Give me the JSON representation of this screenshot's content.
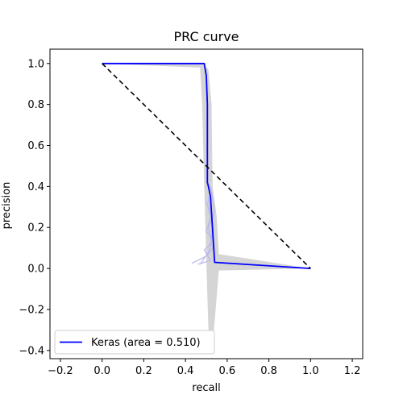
{
  "chart_data": {
    "type": "line",
    "title": "PRC curve",
    "xlabel": "recall",
    "ylabel": "precision",
    "xlim": [
      -0.25,
      1.25
    ],
    "ylim": [
      -0.44,
      1.07
    ],
    "xticks": [
      -0.2,
      0.0,
      0.2,
      0.4,
      0.6,
      0.8,
      1.0,
      1.2
    ],
    "yticks": [
      -0.4,
      -0.2,
      0.0,
      0.2,
      0.4,
      0.6,
      0.8,
      1.0
    ],
    "xtick_labels": [
      "−0.2",
      "0.0",
      "0.2",
      "0.4",
      "0.6",
      "0.8",
      "1.0",
      "1.2"
    ],
    "ytick_labels": [
      "−0.4",
      "−0.2",
      "0.0",
      "0.2",
      "0.4",
      "0.6",
      "0.8",
      "1.0"
    ],
    "grid": false,
    "legend_position": "lower-left",
    "series": [
      {
        "name": "Keras (area = 0.510)",
        "color": "#0000ff",
        "style": "solid",
        "x": [
          0.0,
          0.49,
          0.5,
          0.505,
          0.505,
          0.51,
          0.52,
          0.54,
          1.0
        ],
        "y": [
          1.0,
          1.0,
          0.94,
          0.8,
          0.42,
          0.4,
          0.35,
          0.03,
          0.0
        ]
      },
      {
        "name": "",
        "color": "#000000",
        "style": "dashed",
        "x": [
          0.0,
          1.0
        ],
        "y": [
          1.0,
          0.0
        ]
      }
    ],
    "band": {
      "color": "#d3d3d3",
      "upper": [
        [
          0.0,
          1.0
        ],
        [
          0.48,
          1.0
        ],
        [
          0.51,
          0.97
        ],
        [
          0.525,
          0.8
        ],
        [
          0.53,
          0.4
        ],
        [
          0.55,
          0.25
        ],
        [
          0.56,
          0.07
        ],
        [
          1.0,
          0.0
        ]
      ],
      "lower": [
        [
          1.0,
          0.0
        ],
        [
          0.56,
          -0.01
        ],
        [
          0.53,
          -0.38
        ],
        [
          0.51,
          -0.3
        ],
        [
          0.5,
          0.03
        ],
        [
          0.49,
          0.4
        ],
        [
          0.48,
          0.8
        ],
        [
          0.47,
          0.98
        ]
      ]
    },
    "light_traces": {
      "color": "#b8b8f0",
      "lines": [
        {
          "x": [
            0.51,
            0.52,
            0.5,
            0.53,
            0.51,
            0.49,
            0.47
          ],
          "y": [
            0.35,
            0.25,
            0.18,
            0.15,
            0.08,
            0.05,
            0.02
          ]
        },
        {
          "x": [
            0.52,
            0.54,
            0.51,
            0.53,
            0.5,
            0.43
          ],
          "y": [
            0.4,
            0.28,
            0.2,
            0.1,
            0.06,
            0.025
          ]
        },
        {
          "x": [
            0.5,
            0.53,
            0.52,
            0.49,
            0.52,
            0.46
          ],
          "y": [
            0.33,
            0.22,
            0.12,
            0.09,
            0.04,
            0.02
          ]
        }
      ]
    }
  }
}
